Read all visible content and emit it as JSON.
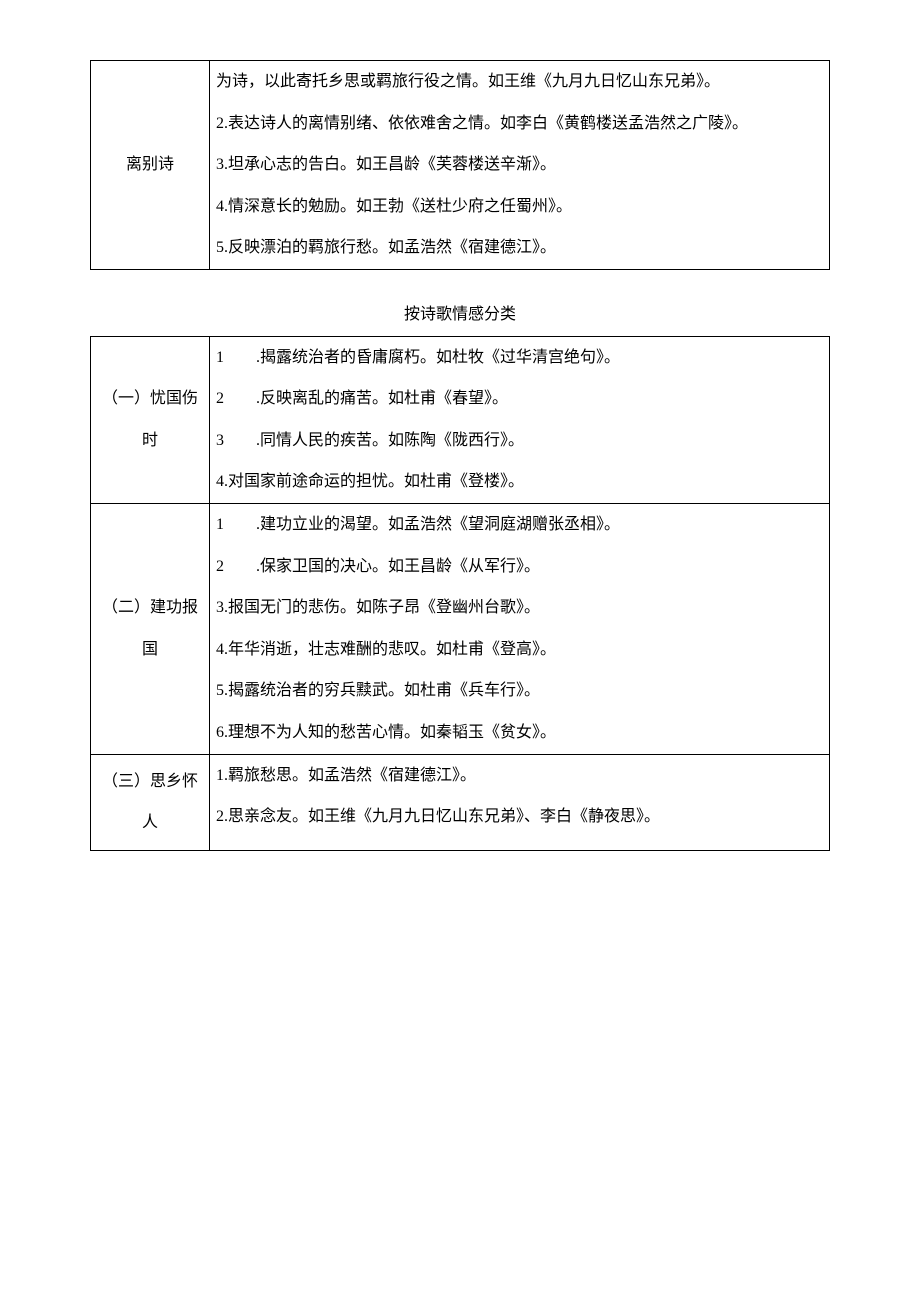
{
  "table1": {
    "left": "离别诗",
    "lines": [
      "为诗，以此寄托乡思或羁旅行役之情。如王维《九月九日忆山东兄弟》。",
      "2.表达诗人的离情别绪、依依难舍之情。如李白《黄鹤楼送孟浩然之广陵》。",
      "3.坦承心志的告白。如王昌龄《芙蓉楼送辛渐》。",
      "4.情深意长的勉励。如王勃《送杜少府之任蜀州》。",
      "5.反映漂泊的羁旅行愁。如孟浩然《宿建德江》。"
    ]
  },
  "section_title": "按诗歌情感分类",
  "table2": {
    "rows": [
      {
        "left": "（一）忧国伤时",
        "lines": [
          "1　　.揭露统治者的昏庸腐朽。如杜牧《过华清宫绝句》。",
          "2　　.反映离乱的痛苦。如杜甫《春望》。",
          "3　　.同情人民的疾苦。如陈陶《陇西行》。",
          "4.对国家前途命运的担忧。如杜甫《登楼》。"
        ]
      },
      {
        "left": "（二）建功报国",
        "lines": [
          "1　　.建功立业的渴望。如孟浩然《望洞庭湖赠张丞相》。",
          "2　　.保家卫国的决心。如王昌龄《从军行》。",
          "3.报国无门的悲伤。如陈子昂《登幽州台歌》。",
          "4.年华消逝，壮志难酬的悲叹。如杜甫《登高》。",
          "5.揭露统治者的穷兵黩武。如杜甫《兵车行》。",
          "6.理想不为人知的愁苦心情。如秦韬玉《贫女》。"
        ]
      },
      {
        "left": "（三）思乡怀人",
        "lines": [
          "1.羁旅愁思。如孟浩然《宿建德江》。",
          "2.思亲念友。如王维《九月九日忆山东兄弟》、李白《静夜思》。"
        ]
      }
    ]
  }
}
